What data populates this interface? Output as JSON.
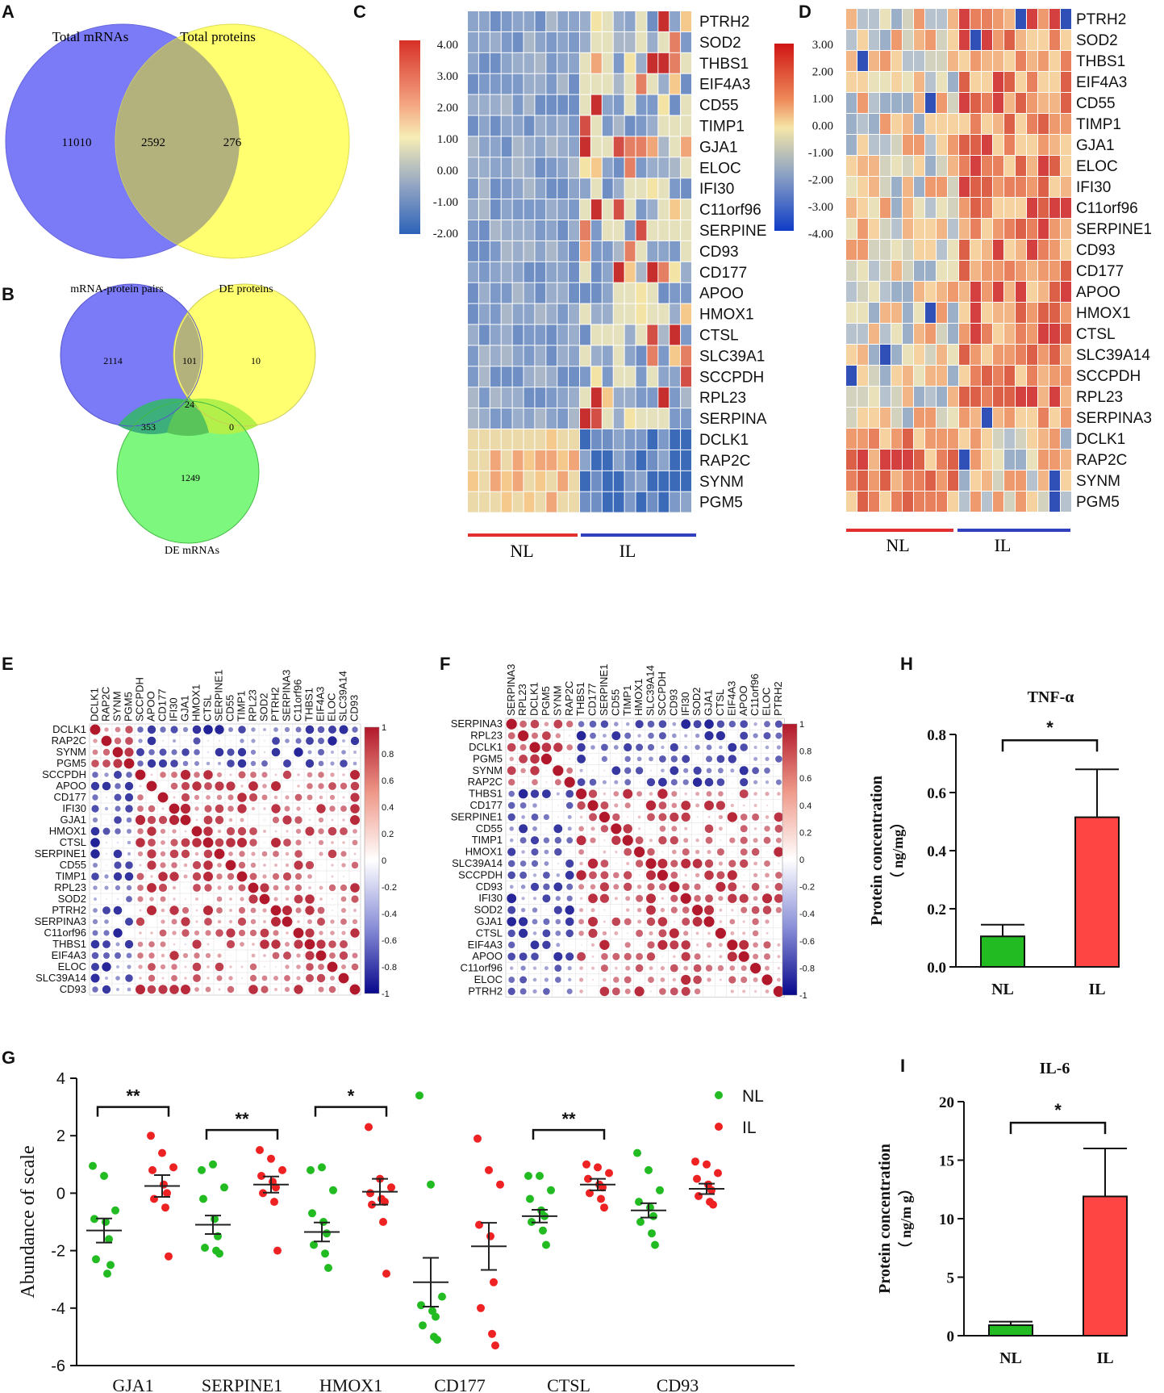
{
  "panels": {
    "a": "A",
    "b": "B",
    "c": "C",
    "d": "D",
    "e": "E",
    "f": "F",
    "g": "G",
    "h": "H",
    "i": "I"
  },
  "venn_a": {
    "left_label": "Total mRNAs",
    "right_label": "Total proteins",
    "left_only": "11010",
    "overlap": "2592",
    "right_only": "276",
    "colors": {
      "left": "#7B7BF7",
      "right": "#FFFF70",
      "overlap": "#B3B27C"
    }
  },
  "venn_b": {
    "pairs_label": "mRNA-protein pairs",
    "deprot_label": "DE proteins",
    "demrna_label": "DE mRNAs",
    "pairs_only": "2114",
    "pairs_deprot": "101",
    "deprot_only": "10",
    "all_three": "24",
    "pairs_demrna": "353",
    "deprot_demrna": "0",
    "demrna_only": "1249"
  },
  "heat_c": {
    "legend_ticks": [
      "4.00",
      "3.00",
      "2.00",
      "1.00",
      "0.00",
      "-1.00",
      "-2.00"
    ],
    "genes": [
      "PTRH2",
      "SOD2",
      "THBS1",
      "EIF4A3",
      "CD55",
      "TIMP1",
      "GJA1",
      "ELOC",
      "IFI30",
      "C11orf96",
      "SERPINE",
      "CD93",
      "CD177",
      "APOO",
      "HMOX1",
      "CTSL",
      "SLC39A1",
      "SCCPDH",
      "RPL23",
      "SERPINA",
      "DCLK1",
      "RAP2C",
      "SYNM",
      "PGM5"
    ],
    "group_nl": "NL",
    "group_il": "IL"
  },
  "heat_d": {
    "legend_ticks": [
      "3.00",
      "2.00",
      "1.00",
      "0.00",
      "-1.00",
      "-2.00",
      "-3.00",
      "-4.00"
    ],
    "genes": [
      "PTRH2",
      "SOD2",
      "THBS1",
      "EIF4A3",
      "CD55",
      "TIMP1",
      "GJA1",
      "ELOC",
      "IFI30",
      "C11orf96",
      "SERPINE1",
      "CD93",
      "CD177",
      "APOO",
      "HMOX1",
      "CTSL",
      "SLC39A14",
      "SCCPDH",
      "RPL23",
      "SERPINA3",
      "DCLK1",
      "RAP2C",
      "SYNM",
      "PGM5"
    ],
    "group_nl": "NL",
    "group_il": "IL"
  },
  "corr_e": {
    "labels": [
      "DCLK1",
      "RAP2C",
      "SYNM",
      "PGM5",
      "SCCPDH",
      "APOO",
      "CD177",
      "IFI30",
      "GJA1",
      "HMOX1",
      "CTSL",
      "SERPINE1",
      "CD55",
      "TIMP1",
      "RPL23",
      "SOD2",
      "PTRH2",
      "SERPINA3",
      "C11orf96",
      "THBS1",
      "EIF4A3",
      "ELOC",
      "SLC39A14",
      "CD93"
    ]
  },
  "corr_f": {
    "labels": [
      "SERPINA3",
      "RPL23",
      "DCLK1",
      "PGM5",
      "SYNM",
      "RAP2C",
      "THBS1",
      "CD177",
      "SERPINE1",
      "CD55",
      "TIMP1",
      "HMOX1",
      "SLC39A14",
      "SCCPDH",
      "CD93",
      "IFI30",
      "SOD2",
      "GJA1",
      "CTSL",
      "EIF4A3",
      "APOO",
      "C11orf96",
      "ELOC",
      "PTRH2"
    ]
  },
  "corr_legend_ticks": [
    "1",
    "0.8",
    "0.6",
    "0.4",
    "0.2",
    "0",
    "-0.2",
    "-0.4",
    "-0.6",
    "-0.8",
    "-1"
  ],
  "chart_data": [
    {
      "type": "scatter",
      "panel": "G",
      "ylabel": "Abundance of scale",
      "ylim": [
        -6,
        4
      ],
      "yticks": [
        "4",
        "2",
        "0",
        "-2",
        "-4",
        "-6"
      ],
      "categories": [
        "GJA1",
        "SERPINE1",
        "HMOX1",
        "CD177",
        "CTSL",
        "CD93"
      ],
      "legend": [
        "NL",
        "IL"
      ],
      "significance": [
        "**",
        "**",
        "*",
        "",
        "**",
        ""
      ],
      "series": [
        {
          "name": "NL",
          "color": "#22BB22",
          "means": [
            -1.3,
            -1.1,
            -1.35,
            -3.1,
            -0.8,
            -0.6
          ],
          "sem": [
            0.42,
            0.32,
            0.33,
            0.85,
            0.22,
            0.25
          ],
          "points": [
            [
              0.95,
              0.6,
              -0.6,
              -0.9,
              -1.0,
              -1.6,
              -2.3,
              -2.8,
              -2.5
            ],
            [
              0.8,
              1.0,
              0.2,
              -0.2,
              -0.9,
              -1.5,
              -1.9,
              -2.0,
              -2.1
            ],
            [
              0.8,
              0.9,
              0.1,
              -0.7,
              -1.0,
              -1.4,
              -1.8,
              -2.1,
              -2.6
            ],
            [
              3.4,
              0.3,
              -3.6,
              -3.9,
              -4.1,
              -4.3,
              -4.6,
              -5.0,
              -5.1
            ],
            [
              0.6,
              0.6,
              0.1,
              -0.2,
              -0.6,
              -0.8,
              -1.0,
              -1.3,
              -1.8
            ],
            [
              1.4,
              0.8,
              0.1,
              -0.3,
              -0.5,
              -0.8,
              -1.0,
              -1.4,
              -1.8
            ]
          ]
        },
        {
          "name": "IL",
          "color": "#EE2222",
          "means": [
            0.25,
            0.3,
            0.05,
            -1.85,
            0.3,
            0.15
          ],
          "sem": [
            0.38,
            0.28,
            0.45,
            0.82,
            0.2,
            0.18
          ],
          "points": [
            [
              2.0,
              1.4,
              0.9,
              0.8,
              0.3,
              0.0,
              -0.2,
              -0.5,
              -2.2
            ],
            [
              1.5,
              1.2,
              0.8,
              0.6,
              0.4,
              0.2,
              0.0,
              -0.3,
              -2.0
            ],
            [
              2.3,
              0.5,
              0.2,
              0.0,
              -0.2,
              -0.3,
              -0.4,
              -1.0,
              -2.8
            ],
            [
              1.9,
              0.8,
              0.3,
              -1.1,
              -1.5,
              -3.1,
              -4.0,
              -4.9,
              -5.3
            ],
            [
              1.0,
              0.9,
              0.7,
              0.5,
              0.3,
              0.2,
              0.0,
              -0.2,
              -0.5
            ],
            [
              1.1,
              1.0,
              0.7,
              0.5,
              0.3,
              0.1,
              -0.1,
              -0.3,
              -0.4
            ]
          ]
        }
      ]
    },
    {
      "type": "bar",
      "panel": "H",
      "title": "TNF-α",
      "ylabel": "Protein concentration",
      "yunit": "（ ng/mg）",
      "ylim": [
        0,
        0.8
      ],
      "yticks": [
        "0.8",
        "0.6",
        "0.4",
        "0.2",
        "0.0"
      ],
      "categories": [
        "NL",
        "IL"
      ],
      "values": [
        0.105,
        0.515
      ],
      "errors": [
        0.04,
        0.165
      ],
      "colors": [
        "#22BB22",
        "#FF4444"
      ],
      "significance": "*"
    },
    {
      "type": "bar",
      "panel": "I",
      "title": "IL-6",
      "ylabel": "Protein concentration",
      "yunit": "（ ng/m g）",
      "ylim": [
        0,
        20
      ],
      "yticks": [
        "20",
        "15",
        "10",
        "5",
        "0"
      ],
      "categories": [
        "NL",
        "IL"
      ],
      "values": [
        0.9,
        11.9
      ],
      "errors": [
        0.3,
        4.1
      ],
      "colors": [
        "#22BB22",
        "#FF4444"
      ],
      "significance": "*"
    }
  ]
}
